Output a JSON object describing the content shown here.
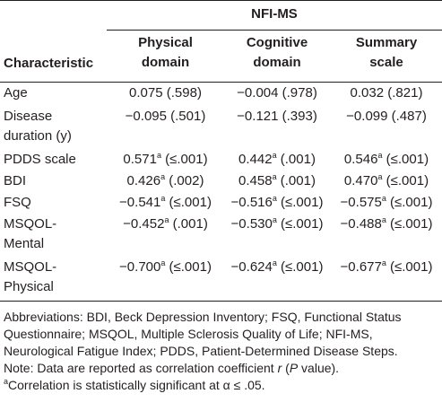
{
  "table": {
    "group_header": "NFI-MS",
    "columns": {
      "characteristic": "Characteristic",
      "physical": [
        "Physical",
        "domain"
      ],
      "cognitive": [
        "Cognitive",
        "domain"
      ],
      "summary": [
        "Summary",
        "scale"
      ]
    },
    "rows": [
      {
        "label": [
          "Age"
        ],
        "physical": {
          "r": "0.075",
          "sup": "",
          "p": " (.598)"
        },
        "cognitive": {
          "r": "−0.004",
          "sup": "",
          "p": " (.978)"
        },
        "summary": {
          "r": "0.032",
          "sup": "",
          "p": " (.821)"
        }
      },
      {
        "label": [
          "Disease",
          "duration (y)"
        ],
        "physical": {
          "r": "−0.095",
          "sup": "",
          "p": " (.501)"
        },
        "cognitive": {
          "r": "−0.121",
          "sup": "",
          "p": " (.393)"
        },
        "summary": {
          "r": "−0.099",
          "sup": "",
          "p": " (.487)"
        }
      },
      {
        "label": [
          "PDDS scale"
        ],
        "physical": {
          "r": "0.571",
          "sup": "a",
          "p": " (≤.001)"
        },
        "cognitive": {
          "r": "0.442",
          "sup": "a",
          "p": " (.001)"
        },
        "summary": {
          "r": "0.546",
          "sup": "a",
          "p": " (≤.001)"
        }
      },
      {
        "label": [
          "BDI"
        ],
        "physical": {
          "r": "0.426",
          "sup": "a",
          "p": " (.002)"
        },
        "cognitive": {
          "r": "0.458",
          "sup": "a",
          "p": " (.001)"
        },
        "summary": {
          "r": "0.470",
          "sup": "a",
          "p": " (≤.001)"
        }
      },
      {
        "label": [
          "FSQ"
        ],
        "physical": {
          "r": "−0.541",
          "sup": "a",
          "p": " (≤.001)"
        },
        "cognitive": {
          "r": "−0.516",
          "sup": "a",
          "p": " (≤.001)"
        },
        "summary": {
          "r": "−0.575",
          "sup": "a",
          "p": " (≤.001)"
        }
      },
      {
        "label": [
          "MSQOL-",
          "Mental"
        ],
        "physical": {
          "r": "−0.452",
          "sup": "a",
          "p": " (.001)"
        },
        "cognitive": {
          "r": "−0.530",
          "sup": "a",
          "p": " (≤.001)"
        },
        "summary": {
          "r": "−0.488",
          "sup": "a",
          "p": " (≤.001)"
        }
      },
      {
        "label": [
          "MSQOL-",
          "Physical"
        ],
        "physical": {
          "r": "−0.700",
          "sup": "a",
          "p": " (≤.001)"
        },
        "cognitive": {
          "r": "−0.624",
          "sup": "a",
          "p": " (≤.001)"
        },
        "summary": {
          "r": "−0.677",
          "sup": "a",
          "p": " (≤.001)"
        }
      }
    ]
  },
  "footnotes": {
    "abbreviations": "Abbreviations: BDI, Beck Depression Inventory; FSQ, Functional Status Questionnaire; MSQOL, Multiple Sclerosis Quality of Life; NFI-MS, Neurological Fatigue Index; PDDS, Patient-Determined Disease Steps.",
    "note_prefix": "Note: Data are reported as correlation coefficient ",
    "note_r": "r",
    "note_mid": " (",
    "note_p": "P",
    "note_suffix": " value).",
    "sig_marker": "a",
    "sig_text": "Correlation is statistically significant at α ≤ .05."
  }
}
